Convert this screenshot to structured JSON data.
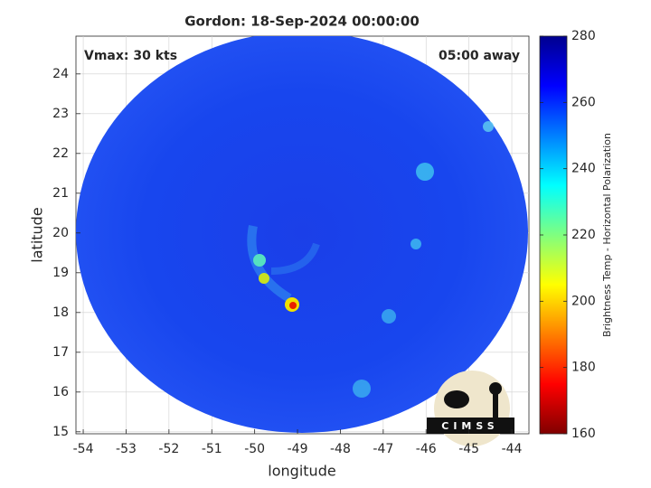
{
  "chart_data": {
    "type": "map",
    "title": "Gordon: 18-Sep-2024 00:00:00",
    "x_label": "longitude",
    "y_label": "latitude",
    "annotations": [
      "Vmax: 30 kts",
      "05:00 away"
    ],
    "logo": "CIMSS",
    "xlim": [
      -54.17,
      -43.6
    ],
    "ylim": [
      14.95,
      24.95
    ],
    "xticks": [
      -54,
      -53,
      -52,
      -51,
      -50,
      -49,
      -48,
      -47,
      -46,
      -45,
      -44
    ],
    "yticks": [
      15,
      16,
      17,
      18,
      19,
      20,
      21,
      22,
      23,
      24
    ],
    "grid": true,
    "colorbar": {
      "label": "Brightness Temp - Horizontal Polarization",
      "colormap": "jet_r",
      "lim": [
        160,
        280
      ],
      "ticks": [
        160,
        180,
        200,
        220,
        240,
        260,
        280
      ]
    }
  }
}
